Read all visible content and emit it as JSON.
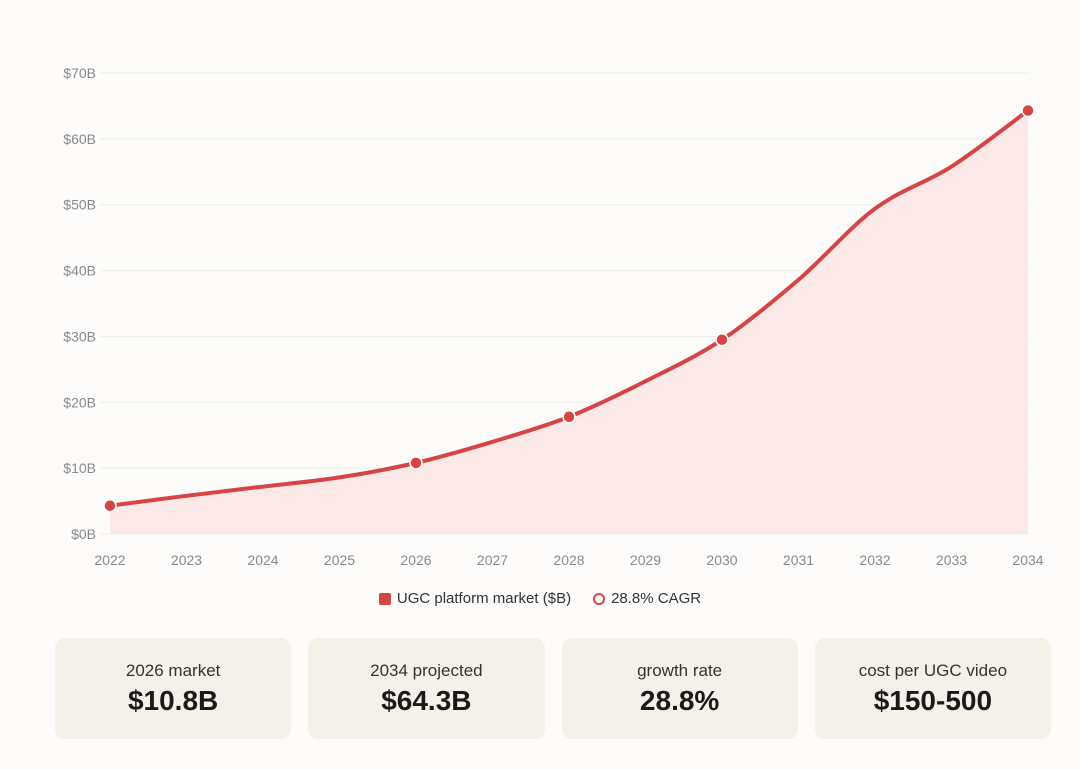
{
  "chart_data": {
    "type": "area",
    "x": [
      "2022",
      "2023",
      "2024",
      "2025",
      "2026",
      "2027",
      "2028",
      "2029",
      "2030",
      "2031",
      "2032",
      "2033",
      "2034"
    ],
    "series": [
      {
        "name": "UGC platform market ($B)",
        "values": [
          4.3,
          5.8,
          7.2,
          8.6,
          10.8,
          14.0,
          17.8,
          23.2,
          29.5,
          38.6,
          49.4,
          55.8,
          64.3
        ]
      }
    ],
    "marked_years": [
      "2022",
      "2026",
      "2028",
      "2030",
      "2034"
    ],
    "y_ticks": [
      "$0B",
      "$10B",
      "$20B",
      "$30B",
      "$40B",
      "$50B",
      "$60B",
      "$70B"
    ],
    "ylim": [
      0,
      70
    ],
    "grid": true,
    "legend_position": "bottom-center",
    "colors": {
      "line": "#d64545",
      "fill": "#fbe9e7",
      "grid": "#ececea"
    }
  },
  "legend": {
    "items": [
      {
        "label": "UGC platform market ($B)",
        "marker": "square"
      },
      {
        "label": "28.8% CAGR",
        "marker": "ring"
      }
    ]
  },
  "cards": [
    {
      "label": "2026 market",
      "value": "$10.8B"
    },
    {
      "label": "2034 projected",
      "value": "$64.3B"
    },
    {
      "label": "growth rate",
      "value": "28.8%"
    },
    {
      "label": "cost per UGC video",
      "value": "$150-500"
    }
  ]
}
